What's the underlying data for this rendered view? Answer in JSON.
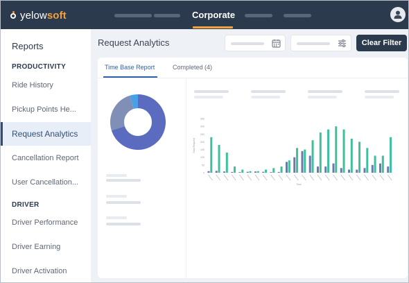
{
  "app": {
    "logo_prefix": "yelow",
    "logo_suffix": "soft",
    "nav_active": "Corporate"
  },
  "sidebar": {
    "title": "Reports",
    "sections": [
      {
        "label": "PRODUCTIVITY"
      },
      {
        "label": "DRIVER"
      }
    ],
    "items": [
      {
        "label": "Ride History"
      },
      {
        "label": "Pickup Points He..."
      },
      {
        "label": "Request Analytics"
      },
      {
        "label": "Cancellation Report"
      },
      {
        "label": "User Cancellation..."
      },
      {
        "label": "Driver Performance"
      },
      {
        "label": "Driver Earning"
      },
      {
        "label": "Driver Activation"
      }
    ]
  },
  "page": {
    "title": "Request Analytics",
    "clear_filter": "Clear Filter",
    "tabs": [
      {
        "label": "Time Base Report"
      },
      {
        "label": "Completed (4)"
      }
    ]
  },
  "colors": {
    "teal": "#3fbf9c",
    "slate": "#6b7aa8",
    "donut_main": "#5b6bc0",
    "donut_secondary": "#7f8fb5",
    "donut_accent": "#4aa0e6"
  },
  "donut": {
    "slices": [
      {
        "value": 0.7,
        "color": "#5b6bc0"
      },
      {
        "value": 0.25,
        "color": "#7f8fb5"
      },
      {
        "value": 0.05,
        "color": "#4aa0e6"
      }
    ]
  },
  "chart_data": {
    "type": "bar",
    "ylabel": "Total Request",
    "xlabel": "Time",
    "ylim": [
      0,
      350
    ],
    "yticks": [
      "350",
      "300",
      "250",
      "200",
      "150",
      "100",
      "50",
      "0"
    ],
    "series": [
      {
        "values": [
          10,
          12,
          8,
          5,
          4,
          6,
          8,
          6,
          4,
          5,
          70,
          100,
          140,
          110,
          40,
          40,
          60,
          30,
          20,
          20,
          30,
          50,
          60,
          40
        ]
      },
      {
        "values": [
          230,
          180,
          130,
          40,
          20,
          10,
          10,
          20,
          30,
          40,
          80,
          160,
          150,
          210,
          260,
          280,
          300,
          280,
          220,
          200,
          160,
          110,
          110,
          230
        ]
      }
    ]
  }
}
